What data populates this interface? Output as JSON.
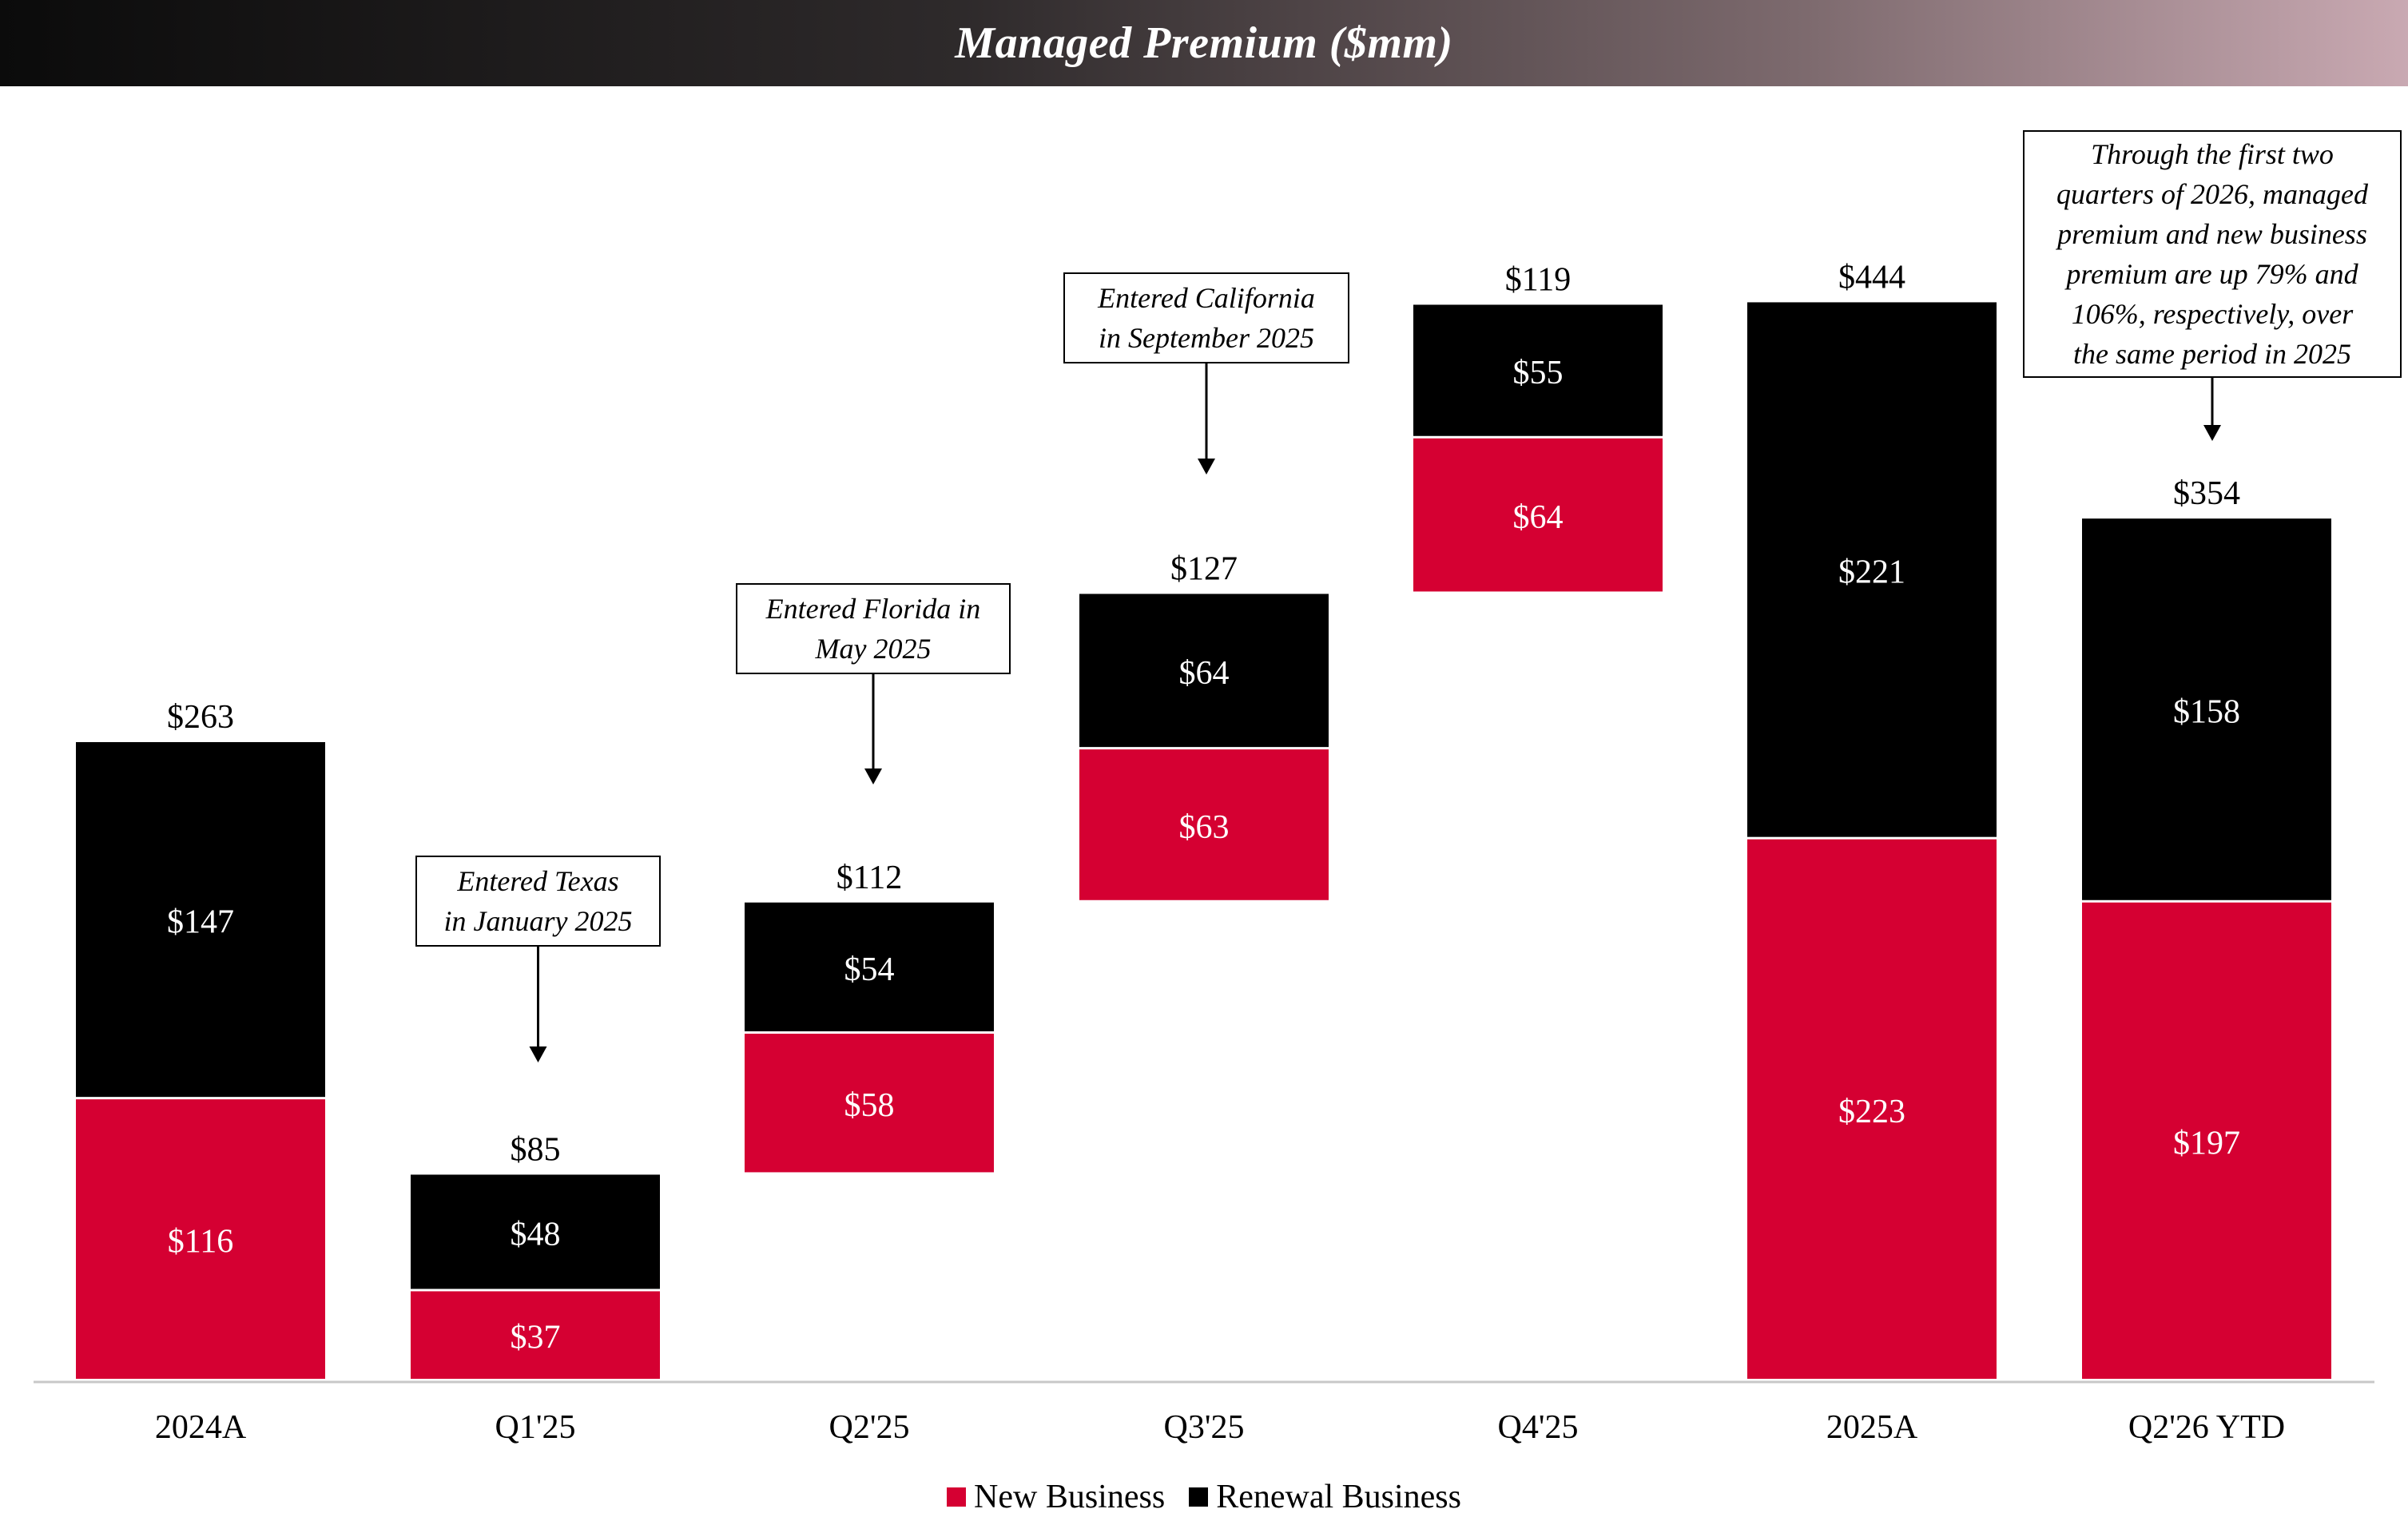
{
  "colors": {
    "new_business": "#d50032",
    "renewal_business": "#000000"
  },
  "chart_data": {
    "type": "bar",
    "stacked": true,
    "title": "Managed Premium ($mm)",
    "categories": [
      "2024A",
      "Q1'25",
      "Q2'25",
      "Q3'25",
      "Q4'25",
      "2025A",
      "Q2'26 YTD"
    ],
    "series": [
      {
        "name": "New Business",
        "values": [
          116,
          37,
          58,
          63,
          64,
          223,
          197
        ],
        "labels": [
          "$116",
          "$37",
          "$58",
          "$63",
          "$64",
          "$223",
          "$197"
        ]
      },
      {
        "name": "Renewal Business",
        "values": [
          147,
          48,
          54,
          64,
          55,
          221,
          158
        ],
        "labels": [
          "$147",
          "$48",
          "$54",
          "$64",
          "$55",
          "$221",
          "$158"
        ]
      }
    ],
    "totals": [
      263,
      85,
      112,
      127,
      119,
      444,
      354
    ],
    "total_labels": [
      "$263",
      "$85",
      "$112",
      "$127",
      "$119",
      "$444",
      "$354"
    ],
    "base_offsets": [
      0,
      0,
      85,
      197,
      324,
      0,
      0
    ],
    "ylim": [
      0,
      450
    ],
    "grid": false,
    "legend_position": "bottom"
  },
  "annotations": [
    {
      "category": "Q1'25",
      "lines": [
        "Entered Texas",
        "in January 2025"
      ]
    },
    {
      "category": "Q2'25",
      "lines": [
        "Entered Florida in",
        "May 2025"
      ]
    },
    {
      "category": "Q3'25",
      "lines": [
        "Entered California",
        "in September 2025"
      ]
    },
    {
      "category": "Q2'26 YTD",
      "lines": [
        "Through the first two",
        "quarters of 2026, managed",
        "premium and new business",
        "premium are up 79% and",
        "106%, respectively, over",
        "the same period in 2025"
      ]
    }
  ]
}
